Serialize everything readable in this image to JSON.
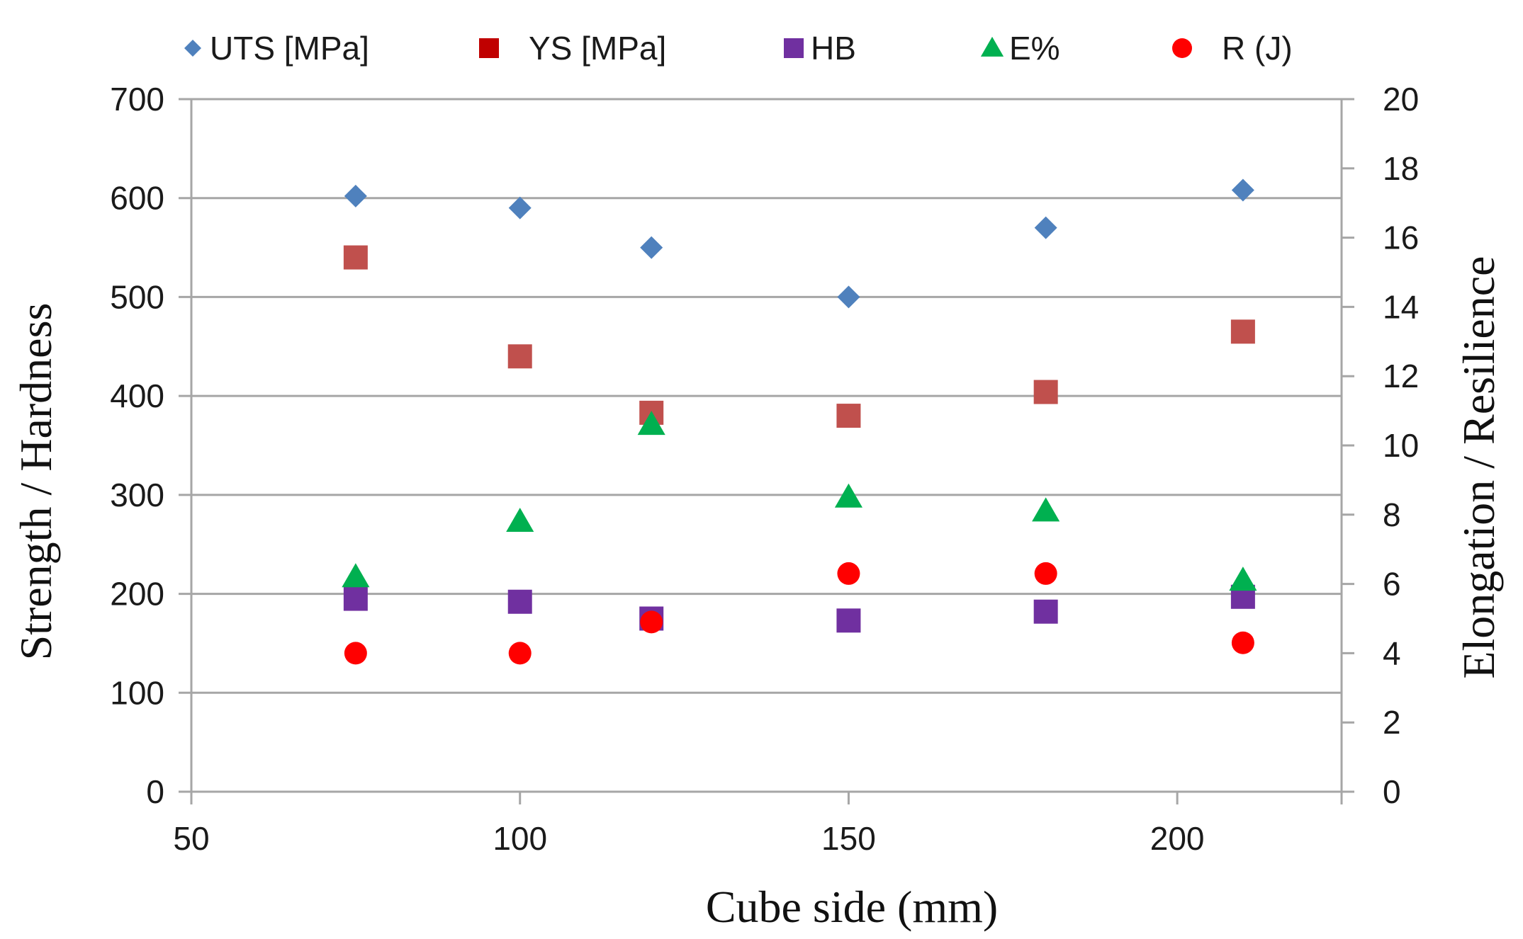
{
  "chart_data": {
    "type": "scatter",
    "title": "",
    "xlabel": "Cube side  (mm)",
    "ylabel_left": "Strength  /  Hardness",
    "ylabel_right": "Elongation / Resilience",
    "xlim": [
      50,
      225
    ],
    "ylim_left": [
      0,
      700
    ],
    "ylim_right": [
      0,
      20
    ],
    "x_ticks": [
      50,
      100,
      150,
      200
    ],
    "y_ticks_left": [
      0,
      100,
      200,
      300,
      400,
      500,
      600,
      700
    ],
    "y_ticks_right": [
      0,
      2,
      4,
      6,
      8,
      10,
      12,
      14,
      16,
      18,
      20
    ],
    "grid": "horizontal",
    "legend_position": "top",
    "series": [
      {
        "name": "UTS [MPa]",
        "axis": "left",
        "marker": "diamond",
        "color": "#4f81bd",
        "x": [
          75,
          100,
          120,
          150,
          180,
          210
        ],
        "values": [
          602,
          590,
          550,
          500,
          570,
          608
        ]
      },
      {
        "name": "YS  [MPa]",
        "axis": "left",
        "marker": "square",
        "color": "#c0504d",
        "legend_color": "#c00000",
        "x": [
          75,
          100,
          120,
          150,
          180,
          210
        ],
        "values": [
          540,
          440,
          383,
          380,
          404,
          465
        ]
      },
      {
        "name": "HB",
        "axis": "left",
        "marker": "square",
        "color": "#7030a0",
        "x": [
          75,
          100,
          120,
          150,
          180,
          210
        ],
        "values": [
          195,
          192,
          175,
          173,
          182,
          197
        ]
      },
      {
        "name": "E%",
        "axis": "right",
        "marker": "triangle",
        "color": "#00b050",
        "x": [
          75,
          100,
          120,
          150,
          180,
          210
        ],
        "values": [
          6.2,
          7.8,
          10.6,
          8.5,
          8.1,
          6.1
        ]
      },
      {
        "name": "R (J)",
        "axis": "right",
        "marker": "circle",
        "color": "#ff0000",
        "x": [
          75,
          100,
          120,
          150,
          180,
          210
        ],
        "values": [
          4.0,
          4.0,
          4.9,
          6.3,
          6.3,
          4.3
        ]
      }
    ]
  }
}
